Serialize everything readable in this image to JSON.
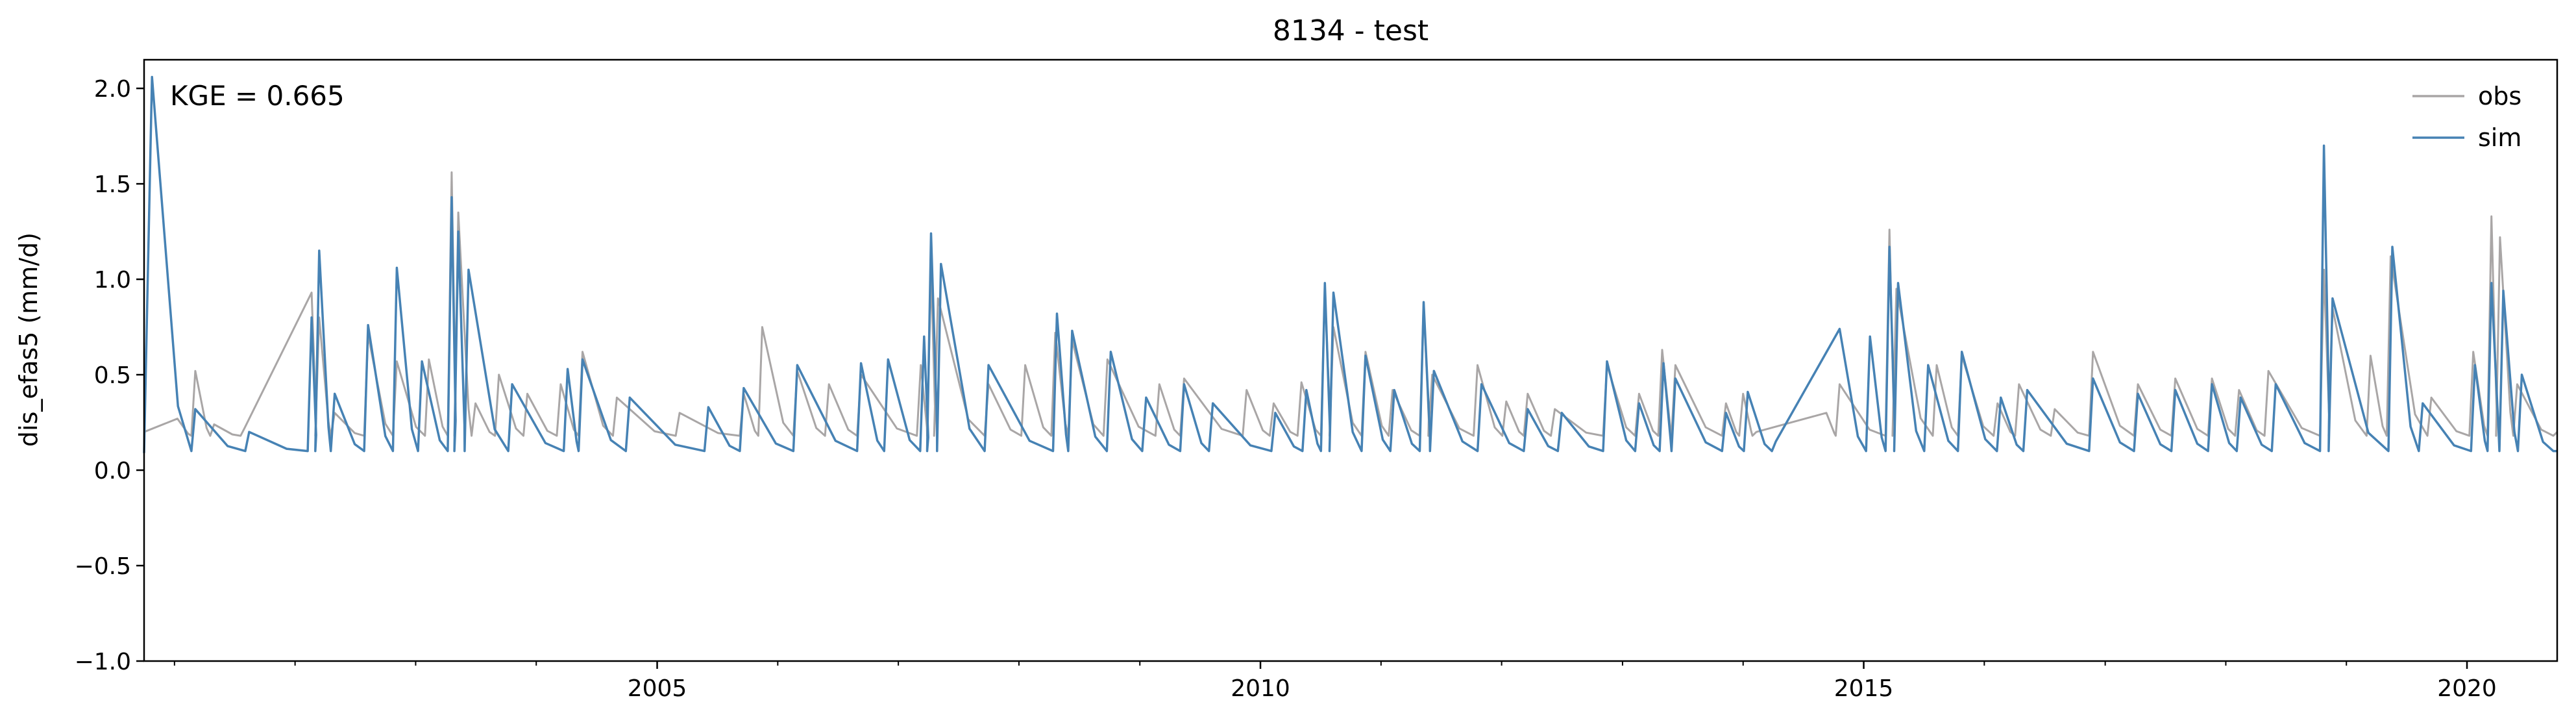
{
  "chart_data": {
    "type": "line",
    "title": "8134 - test",
    "xlabel": "",
    "ylabel": "dis_efas5 (mm/d)",
    "xlim": [
      "2000-10-01",
      "2020-09-30"
    ],
    "ylim": [
      -1.0,
      2.15
    ],
    "yticks": [
      {
        "value": 2.0,
        "label": "2.0"
      },
      {
        "value": 1.5,
        "label": "1.5"
      },
      {
        "value": 1.0,
        "label": "1.0"
      },
      {
        "value": 0.5,
        "label": "0.5"
      },
      {
        "value": 0.0,
        "label": "0.0"
      },
      {
        "value": -0.5,
        "label": "−0.5"
      },
      {
        "value": -1.0,
        "label": "−1.0"
      }
    ],
    "xticks_major": [
      {
        "value": "2005-01-01",
        "label": "2005"
      },
      {
        "value": "2010-01-01",
        "label": "2010"
      },
      {
        "value": "2015-01-01",
        "label": "2015"
      },
      {
        "value": "2020-01-01",
        "label": "2020"
      }
    ],
    "annotation": "KGE = 0.665",
    "legend": {
      "placement": "top-right"
    },
    "grid": false,
    "series": [
      {
        "name": "obs",
        "color": "#a9a6a6",
        "base": 0.18,
        "points": [
          [
            "2000-10-01",
            0.2
          ],
          [
            "2001-01-10",
            0.27
          ],
          [
            "2001-03-05",
            0.52
          ],
          [
            "2001-05-01",
            0.24
          ],
          [
            "2001-08-01",
            0.22
          ],
          [
            "2002-02-20",
            0.93
          ],
          [
            "2002-03-15",
            0.8
          ],
          [
            "2002-05-01",
            0.3
          ],
          [
            "2002-08-10",
            0.71
          ],
          [
            "2002-11-05",
            0.57
          ],
          [
            "2003-02-10",
            0.58
          ],
          [
            "2003-04-20",
            1.56
          ],
          [
            "2003-05-10",
            1.35
          ],
          [
            "2003-07-01",
            0.35
          ],
          [
            "2003-09-10",
            0.5
          ],
          [
            "2003-12-05",
            0.4
          ],
          [
            "2004-03-15",
            0.45
          ],
          [
            "2004-05-20",
            0.62
          ],
          [
            "2004-09-01",
            0.38
          ],
          [
            "2005-03-10",
            0.3
          ],
          [
            "2005-09-20",
            0.4
          ],
          [
            "2005-11-15",
            0.75
          ],
          [
            "2006-03-01",
            0.52
          ],
          [
            "2006-06-05",
            0.45
          ],
          [
            "2006-09-10",
            0.5
          ],
          [
            "2007-03-10",
            0.55
          ],
          [
            "2007-04-10",
            1.05
          ],
          [
            "2007-05-01",
            0.9
          ],
          [
            "2007-10-01",
            0.45
          ],
          [
            "2008-01-20",
            0.55
          ],
          [
            "2008-04-20",
            0.72
          ],
          [
            "2008-06-10",
            0.68
          ],
          [
            "2008-09-25",
            0.58
          ],
          [
            "2009-03-01",
            0.45
          ],
          [
            "2009-05-15",
            0.48
          ],
          [
            "2009-11-20",
            0.42
          ],
          [
            "2010-02-10",
            0.35
          ],
          [
            "2010-05-05",
            0.46
          ],
          [
            "2010-07-15",
            0.95
          ],
          [
            "2010-08-10",
            0.75
          ],
          [
            "2010-11-15",
            0.62
          ],
          [
            "2011-02-05",
            0.42
          ],
          [
            "2011-05-10",
            0.88
          ],
          [
            "2011-06-05",
            0.5
          ],
          [
            "2011-10-20",
            0.55
          ],
          [
            "2012-01-15",
            0.36
          ],
          [
            "2012-03-20",
            0.4
          ],
          [
            "2012-06-10",
            0.32
          ],
          [
            "2012-11-15",
            0.55
          ],
          [
            "2013-02-20",
            0.4
          ],
          [
            "2013-05-01",
            0.63
          ],
          [
            "2013-06-10",
            0.55
          ],
          [
            "2013-11-10",
            0.35
          ],
          [
            "2014-01-01",
            0.4
          ],
          [
            "2014-02-10",
            0.2
          ],
          [
            "2014-09-10",
            0.3
          ],
          [
            "2014-10-20",
            0.45
          ],
          [
            "2015-03-20",
            1.26
          ],
          [
            "2015-04-10",
            0.95
          ],
          [
            "2015-08-10",
            0.55
          ],
          [
            "2015-10-25",
            0.6
          ],
          [
            "2016-02-10",
            0.35
          ],
          [
            "2016-04-15",
            0.45
          ],
          [
            "2016-08-01",
            0.32
          ],
          [
            "2016-11-25",
            0.62
          ],
          [
            "2017-04-10",
            0.45
          ],
          [
            "2017-08-01",
            0.48
          ],
          [
            "2017-11-20",
            0.48
          ],
          [
            "2018-02-10",
            0.42
          ],
          [
            "2018-05-10",
            0.52
          ],
          [
            "2018-10-25",
            1.05
          ],
          [
            "2018-11-20",
            0.85
          ],
          [
            "2019-03-15",
            0.6
          ],
          [
            "2019-05-15",
            1.12
          ],
          [
            "2019-09-15",
            0.38
          ],
          [
            "2020-01-20",
            0.62
          ],
          [
            "2020-03-15",
            1.33
          ],
          [
            "2020-04-10",
            1.22
          ],
          [
            "2020-06-01",
            0.45
          ],
          [
            "2020-09-30",
            0.2
          ]
        ]
      },
      {
        "name": "sim",
        "color": "#4682b4",
        "base": 0.1,
        "points": [
          [
            "2000-10-01",
            0.09
          ],
          [
            "2000-10-25",
            2.06
          ],
          [
            "2001-03-05",
            0.32
          ],
          [
            "2001-08-15",
            0.2
          ],
          [
            "2002-02-20",
            0.8
          ],
          [
            "2002-03-15",
            1.15
          ],
          [
            "2002-05-01",
            0.4
          ],
          [
            "2002-08-10",
            0.76
          ],
          [
            "2002-11-05",
            1.06
          ],
          [
            "2003-01-20",
            0.57
          ],
          [
            "2003-04-20",
            1.43
          ],
          [
            "2003-05-10",
            1.25
          ],
          [
            "2003-06-10",
            1.05
          ],
          [
            "2003-10-20",
            0.45
          ],
          [
            "2004-04-05",
            0.53
          ],
          [
            "2004-05-20",
            0.58
          ],
          [
            "2004-10-10",
            0.38
          ],
          [
            "2005-06-05",
            0.33
          ],
          [
            "2005-09-20",
            0.43
          ],
          [
            "2006-03-01",
            0.55
          ],
          [
            "2006-09-10",
            0.56
          ],
          [
            "2006-12-01",
            0.58
          ],
          [
            "2007-03-20",
            0.7
          ],
          [
            "2007-04-10",
            1.24
          ],
          [
            "2007-05-10",
            1.08
          ],
          [
            "2007-10-01",
            0.55
          ],
          [
            "2008-04-25",
            0.82
          ],
          [
            "2008-06-10",
            0.73
          ],
          [
            "2008-10-05",
            0.62
          ],
          [
            "2009-01-20",
            0.38
          ],
          [
            "2009-05-15",
            0.45
          ],
          [
            "2009-08-10",
            0.35
          ],
          [
            "2010-02-15",
            0.3
          ],
          [
            "2010-05-20",
            0.42
          ],
          [
            "2010-07-15",
            0.98
          ],
          [
            "2010-08-10",
            0.93
          ],
          [
            "2010-11-15",
            0.6
          ],
          [
            "2011-02-10",
            0.42
          ],
          [
            "2011-05-10",
            0.88
          ],
          [
            "2011-06-10",
            0.52
          ],
          [
            "2011-11-01",
            0.45
          ],
          [
            "2012-03-20",
            0.32
          ],
          [
            "2012-07-01",
            0.3
          ],
          [
            "2012-11-15",
            0.57
          ],
          [
            "2013-02-20",
            0.35
          ],
          [
            "2013-05-05",
            0.56
          ],
          [
            "2013-06-10",
            0.48
          ],
          [
            "2013-11-10",
            0.3
          ],
          [
            "2014-01-15",
            0.41
          ],
          [
            "2014-04-10",
            0.15
          ],
          [
            "2014-10-20",
            0.74
          ],
          [
            "2015-01-20",
            0.7
          ],
          [
            "2015-03-20",
            1.17
          ],
          [
            "2015-04-15",
            0.98
          ],
          [
            "2015-07-15",
            0.55
          ],
          [
            "2015-10-25",
            0.62
          ],
          [
            "2016-02-20",
            0.38
          ],
          [
            "2016-05-10",
            0.42
          ],
          [
            "2016-11-25",
            0.48
          ],
          [
            "2017-04-10",
            0.4
          ],
          [
            "2017-08-01",
            0.42
          ],
          [
            "2017-11-20",
            0.45
          ],
          [
            "2018-02-15",
            0.38
          ],
          [
            "2018-06-01",
            0.45
          ],
          [
            "2018-10-25",
            1.7
          ],
          [
            "2018-11-20",
            0.9
          ],
          [
            "2019-05-20",
            1.17
          ],
          [
            "2019-08-20",
            0.35
          ],
          [
            "2020-01-25",
            0.55
          ],
          [
            "2020-03-15",
            0.98
          ],
          [
            "2020-04-20",
            0.94
          ],
          [
            "2020-06-15",
            0.5
          ],
          [
            "2020-09-30",
            0.1
          ]
        ]
      }
    ]
  }
}
